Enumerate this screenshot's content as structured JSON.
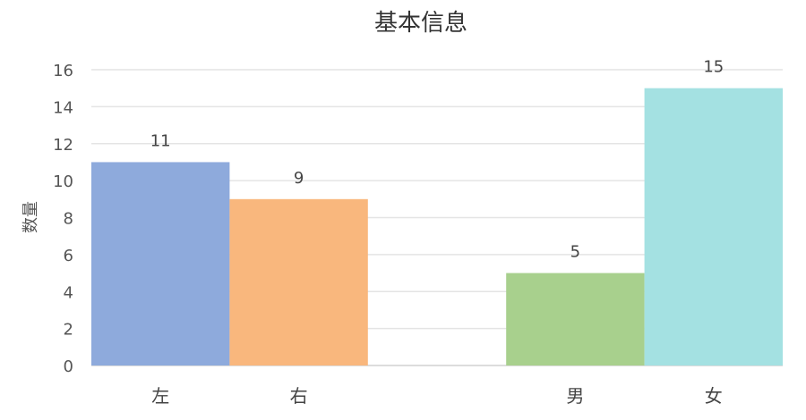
{
  "chart_data": {
    "type": "bar",
    "title": "基本信息",
    "xlabel": "",
    "ylabel": "数量",
    "ylim": [
      0,
      16
    ],
    "yticks": [
      0,
      2,
      4,
      6,
      8,
      10,
      12,
      14,
      16
    ],
    "grid": true,
    "categories": [
      "左",
      "右",
      "男",
      "女"
    ],
    "values": [
      11,
      9,
      5,
      15
    ],
    "colors": [
      "#8eaadc",
      "#f9b77d",
      "#a8d08d",
      "#a4e1e2"
    ],
    "data_labels": true
  }
}
